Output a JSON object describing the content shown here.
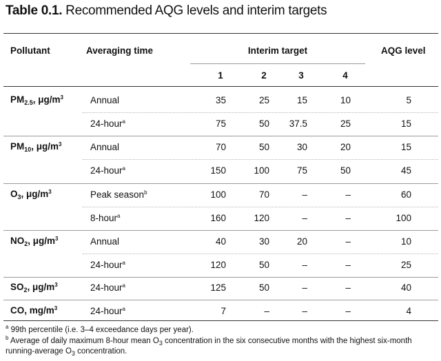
{
  "title": {
    "bold": "Table 0.1.",
    "rest": " Recommended AQG levels and interim targets"
  },
  "headers": {
    "pollutant": "Pollutant",
    "averaging_time": "Averaging time",
    "interim_target": "Interim target",
    "aqg_level": "AQG level",
    "target_numbers": [
      "1",
      "2",
      "3",
      "4"
    ]
  },
  "pollutants": [
    {
      "main": "PM",
      "sub": "2.5",
      "unit": ", μg/m",
      "sup": "3"
    },
    {
      "main": "PM",
      "sub": "10",
      "unit": ", μg/m",
      "sup": "3"
    },
    {
      "main": "O",
      "sub": "3",
      "unit": ", μg/m",
      "sup": "3"
    },
    {
      "main": "NO",
      "sub": "2",
      "unit": ", μg/m",
      "sup": "3"
    },
    {
      "main": "SO",
      "sub": "2",
      "unit": ", μg/m",
      "sup": "3"
    },
    {
      "main": "CO",
      "sub": "",
      "unit": ", mg/m",
      "sup": "3"
    }
  ],
  "rows": [
    {
      "time": "Annual",
      "mark": "",
      "it": [
        "35",
        "25",
        "15",
        "10"
      ],
      "aqg": "5"
    },
    {
      "time": "24-hour",
      "mark": "a",
      "it": [
        "75",
        "50",
        "37.5",
        "25"
      ],
      "aqg": "15"
    },
    {
      "time": "Annual",
      "mark": "",
      "it": [
        "70",
        "50",
        "30",
        "20"
      ],
      "aqg": "15"
    },
    {
      "time": "24-hour",
      "mark": "a",
      "it": [
        "150",
        "100",
        "75",
        "50"
      ],
      "aqg": "45"
    },
    {
      "time": "Peak season",
      "mark": "b",
      "it": [
        "100",
        "70",
        "–",
        "–"
      ],
      "aqg": "60"
    },
    {
      "time": "8-hour",
      "mark": "a",
      "it": [
        "160",
        "120",
        "–",
        "–"
      ],
      "aqg": "100"
    },
    {
      "time": "Annual",
      "mark": "",
      "it": [
        "40",
        "30",
        "20",
        "–"
      ],
      "aqg": "10"
    },
    {
      "time": "24-hour",
      "mark": "a",
      "it": [
        "120",
        "50",
        "–",
        "–"
      ],
      "aqg": "25"
    },
    {
      "time": "24-hour",
      "mark": "a",
      "it": [
        "125",
        "50",
        "–",
        "–"
      ],
      "aqg": "40"
    },
    {
      "time": "24-hour",
      "mark": "a",
      "it": [
        "7",
        "–",
        "–",
        "–"
      ],
      "aqg": "4"
    }
  ],
  "footnotes": {
    "a": {
      "mark": "a",
      "text": " 99th percentile (i.e. 3–4 exceedance days per year)."
    },
    "b": {
      "mark": "b",
      "line1_pre": " Average of daily maximum 8-hour mean O",
      "line1_sub": "3",
      "line1_post": " concentration in the six consecutive months with the highest six-month",
      "line2_pre": "running-average O",
      "line2_sub": "3",
      "line2_post": " concentration."
    }
  }
}
